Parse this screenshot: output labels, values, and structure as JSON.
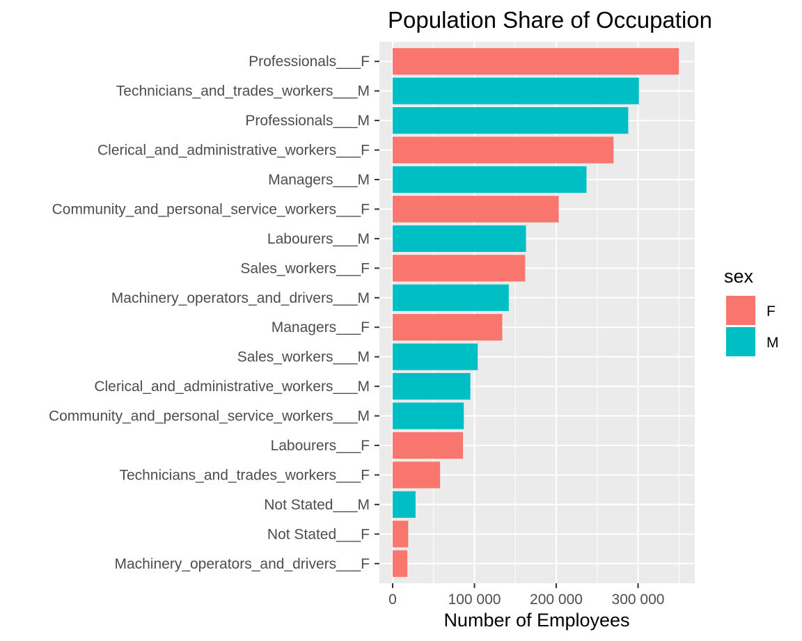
{
  "chart_data": {
    "type": "bar",
    "orientation": "horizontal",
    "title": "Population Share of Occupation",
    "xlabel": "Number of Employees",
    "ylabel": "",
    "xlim": [
      0,
      360000
    ],
    "x_ticks": [
      0,
      100000,
      200000,
      300000
    ],
    "x_tick_labels": [
      "0",
      "100 000",
      "200 000",
      "300 000"
    ],
    "grid": true,
    "legend": {
      "title": "sex",
      "position": "right",
      "entries": [
        {
          "label": "F",
          "color": "#F8766D"
        },
        {
          "label": "M",
          "color": "#00BFC4"
        }
      ]
    },
    "bars": [
      {
        "category": "Professionals___F",
        "value": 350000,
        "sex": "F"
      },
      {
        "category": "Technicians_and_trades_workers___M",
        "value": 301000,
        "sex": "M"
      },
      {
        "category": "Professionals___M",
        "value": 288000,
        "sex": "M"
      },
      {
        "category": "Clerical_and_administrative_workers___F",
        "value": 270000,
        "sex": "F"
      },
      {
        "category": "Managers___M",
        "value": 237000,
        "sex": "M"
      },
      {
        "category": "Community_and_personal_service_workers___F",
        "value": 203000,
        "sex": "F"
      },
      {
        "category": "Labourers___M",
        "value": 163000,
        "sex": "M"
      },
      {
        "category": "Sales_workers___F",
        "value": 162000,
        "sex": "F"
      },
      {
        "category": "Machinery_operators_and_drivers___M",
        "value": 142000,
        "sex": "M"
      },
      {
        "category": "Managers___F",
        "value": 134000,
        "sex": "F"
      },
      {
        "category": "Sales_workers___M",
        "value": 104000,
        "sex": "M"
      },
      {
        "category": "Clerical_and_administrative_workers___M",
        "value": 95000,
        "sex": "M"
      },
      {
        "category": "Community_and_personal_service_workers___M",
        "value": 87000,
        "sex": "M"
      },
      {
        "category": "Labourers___F",
        "value": 86000,
        "sex": "F"
      },
      {
        "category": "Technicians_and_trades_workers___F",
        "value": 58000,
        "sex": "F"
      },
      {
        "category": "Not Stated___M",
        "value": 28000,
        "sex": "M"
      },
      {
        "category": "Not Stated___F",
        "value": 19000,
        "sex": "F"
      },
      {
        "category": "Machinery_operators_and_drivers___F",
        "value": 18000,
        "sex": "F"
      }
    ]
  }
}
